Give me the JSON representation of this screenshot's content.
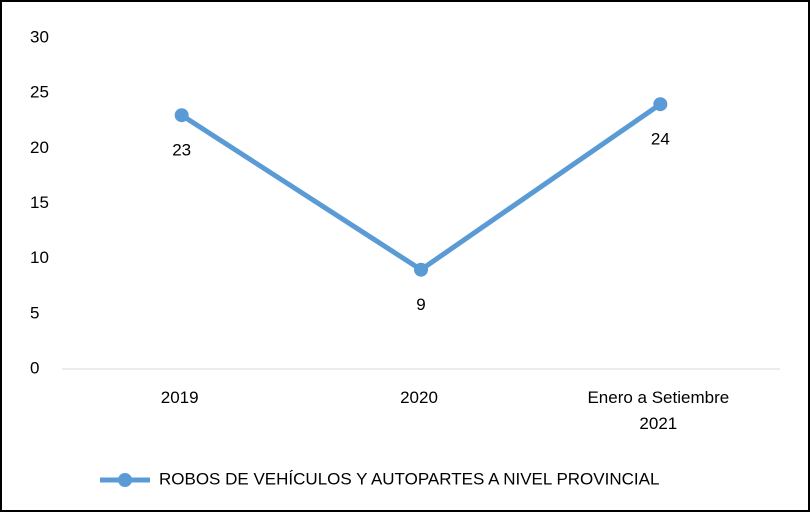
{
  "chart_data": {
    "type": "line",
    "categories": [
      "2019",
      "2020",
      "Enero a Setiembre 2021"
    ],
    "series": [
      {
        "name": "ROBOS DE VEHÍCULOS Y AUTOPARTES A NIVEL PROVINCIAL",
        "color": "#5b9bd5",
        "values": [
          23,
          9,
          24
        ]
      }
    ],
    "ylim": [
      0,
      30
    ],
    "yticks": [
      0,
      5,
      10,
      15,
      20,
      25,
      30
    ],
    "grid": false,
    "legend": "bottom"
  }
}
